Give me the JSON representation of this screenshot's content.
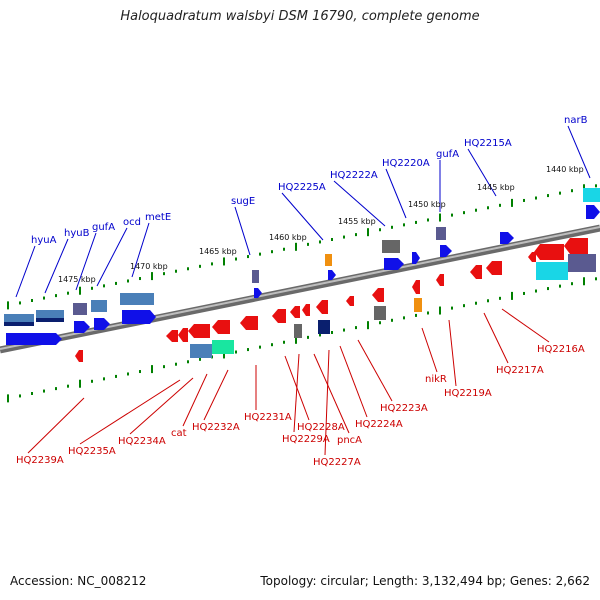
{
  "title": "Haloquadratum walsbyi DSM 16790, complete genome",
  "accession": "Accession: NC_008212",
  "topology": "Topology: circular; Length: 3,132,494 bp; Genes: 2,662",
  "colors": {
    "backbone": "#808080",
    "forward_label": "#0000cc",
    "reverse_label": "#cc0000",
    "tick": "#008000"
  },
  "kbp_labels": [
    "1475 kbp",
    "1470 kbp",
    "1465 kbp",
    "1460 kbp",
    "1455 kbp",
    "1450 kbp",
    "1445 kbp",
    "1440 kbp"
  ],
  "forward_genes": [
    "hyuA",
    "hyuB",
    "gufA",
    "ocd",
    "metE",
    "sugE",
    "HQ2225A",
    "HQ2222A",
    "HQ2220A",
    "gufA",
    "HQ2215A",
    "narB"
  ],
  "reverse_genes": [
    "HQ2239A",
    "HQ2235A",
    "HQ2234A",
    "cat",
    "HQ2232A",
    "HQ2231A",
    "HQ2228A",
    "HQ2229A",
    "pncA",
    "HQ2227A",
    "HQ2224A",
    "HQ2223A",
    "nikR",
    "HQ2219A",
    "HQ2217A",
    "HQ2216A"
  ]
}
